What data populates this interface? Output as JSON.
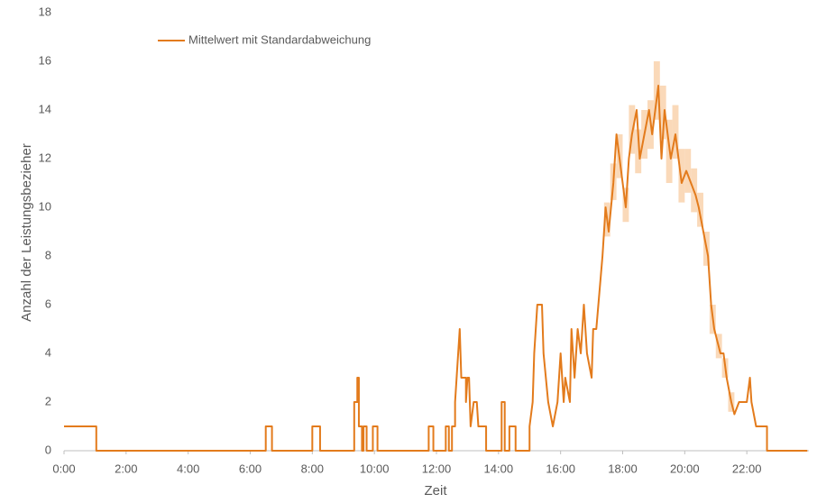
{
  "chart_data": {
    "type": "line",
    "y_label": "Anzahl der Leistungsbezieher",
    "x_label": "Zeit",
    "xlim": [
      0,
      24
    ],
    "ylim": [
      0,
      18
    ],
    "yticks": [
      0,
      2,
      4,
      6,
      8,
      10,
      12,
      14,
      16,
      18
    ],
    "xticks": [
      {
        "value": 0,
        "label": "0:00"
      },
      {
        "value": 2,
        "label": "2:00"
      },
      {
        "value": 4,
        "label": "4:00"
      },
      {
        "value": 6,
        "label": "6:00"
      },
      {
        "value": 8,
        "label": "8:00"
      },
      {
        "value": 10,
        "label": "10:00"
      },
      {
        "value": 12,
        "label": "12:00"
      },
      {
        "value": 14,
        "label": "14:00"
      },
      {
        "value": 16,
        "label": "16:00"
      },
      {
        "value": 18,
        "label": "18:00"
      },
      {
        "value": 20,
        "label": "20:00"
      },
      {
        "value": 22,
        "label": "22:00"
      }
    ],
    "grid": false,
    "legend": "top-left",
    "series": [
      {
        "name": "Mittelwert mit Standardabweichung",
        "color": "#e37b1c",
        "band_color": "#f9cfa8",
        "x": [
          0,
          1.04,
          1.04,
          6.5,
          6.5,
          6.7,
          6.7,
          8.0,
          8.0,
          8.25,
          8.25,
          9.35,
          9.35,
          9.45,
          9.45,
          9.5,
          9.5,
          9.6,
          9.6,
          9.65,
          9.65,
          9.75,
          9.75,
          9.95,
          9.95,
          10.1,
          10.1,
          11.75,
          11.75,
          11.9,
          11.9,
          12.3,
          12.3,
          12.4,
          12.4,
          12.5,
          12.5,
          12.6,
          12.6,
          12.65,
          12.75,
          12.8,
          12.95,
          12.95,
          13.0,
          13.05,
          13.1,
          13.2,
          13.3,
          13.35,
          13.6,
          13.6,
          14.1,
          14.1,
          14.2,
          14.2,
          14.35,
          14.35,
          14.55,
          14.55,
          15.0,
          15.0,
          15.1,
          15.15,
          15.25,
          15.4,
          15.45,
          15.6,
          15.75,
          15.9,
          16.0,
          16.1,
          16.15,
          16.3,
          16.35,
          16.45,
          16.55,
          16.65,
          16.75,
          16.85,
          17.0,
          17.05,
          17.15,
          17.35,
          17.45,
          17.55,
          17.7,
          17.8,
          17.9,
          18.0,
          18.1,
          18.2,
          18.3,
          18.45,
          18.55,
          18.7,
          18.85,
          18.95,
          19.05,
          19.15,
          19.25,
          19.35,
          19.45,
          19.55,
          19.7,
          19.8,
          19.9,
          20.05,
          20.2,
          20.35,
          20.45,
          20.6,
          20.75,
          20.85,
          20.95,
          21.05,
          21.15,
          21.25,
          21.35,
          21.5,
          21.6,
          21.75,
          22.0,
          22.1,
          22.15,
          22.3,
          22.65,
          22.65,
          23.95
        ],
        "values": [
          1,
          1,
          0,
          0,
          1,
          1,
          0,
          0,
          1,
          1,
          0,
          0,
          2,
          2,
          3,
          3,
          1,
          1,
          0,
          0,
          1,
          1,
          0,
          0,
          1,
          1,
          0,
          0,
          1,
          1,
          0,
          0,
          1,
          1,
          0,
          0,
          1,
          1,
          2,
          3,
          5,
          3,
          3,
          2,
          3,
          3,
          1,
          2,
          2,
          1,
          1,
          0,
          0,
          2,
          2,
          0,
          0,
          1,
          1,
          0,
          0,
          1,
          2,
          4,
          6,
          6,
          4,
          2,
          1,
          2,
          4,
          2,
          3,
          2,
          5,
          3,
          5,
          4,
          6,
          4,
          3,
          5,
          5,
          8,
          10,
          9,
          11,
          13,
          12,
          11,
          10,
          12,
          13,
          14,
          12,
          13,
          14,
          13,
          14,
          15,
          12,
          14,
          13,
          12,
          13,
          12,
          11,
          11.5,
          11,
          10.5,
          10,
          9,
          8,
          6,
          5,
          4.5,
          4,
          4,
          3,
          2,
          1.5,
          2,
          2,
          3,
          2,
          1,
          1,
          0,
          0
        ],
        "band": {
          "x": [
            17.5,
            17.7,
            17.9,
            18.1,
            18.3,
            18.5,
            18.7,
            18.9,
            19.1,
            19.3,
            19.5,
            19.7,
            19.9,
            20.1,
            20.3,
            20.5,
            20.7,
            20.9,
            21.1,
            21.3,
            21.5
          ],
          "lower": [
            8.8,
            10.3,
            11.2,
            9.4,
            12.2,
            11.4,
            12.0,
            12.4,
            13.6,
            12.8,
            11.0,
            12.0,
            10.2,
            10.6,
            9.8,
            9.2,
            7.6,
            4.8,
            3.8,
            3.0,
            1.6
          ],
          "upper": [
            10.2,
            11.8,
            13.0,
            10.8,
            14.2,
            13.2,
            14.0,
            14.4,
            16.0,
            15.0,
            13.6,
            14.2,
            12.4,
            12.4,
            11.6,
            10.6,
            9.0,
            6.0,
            4.8,
            3.8,
            2.4
          ]
        }
      }
    ]
  }
}
